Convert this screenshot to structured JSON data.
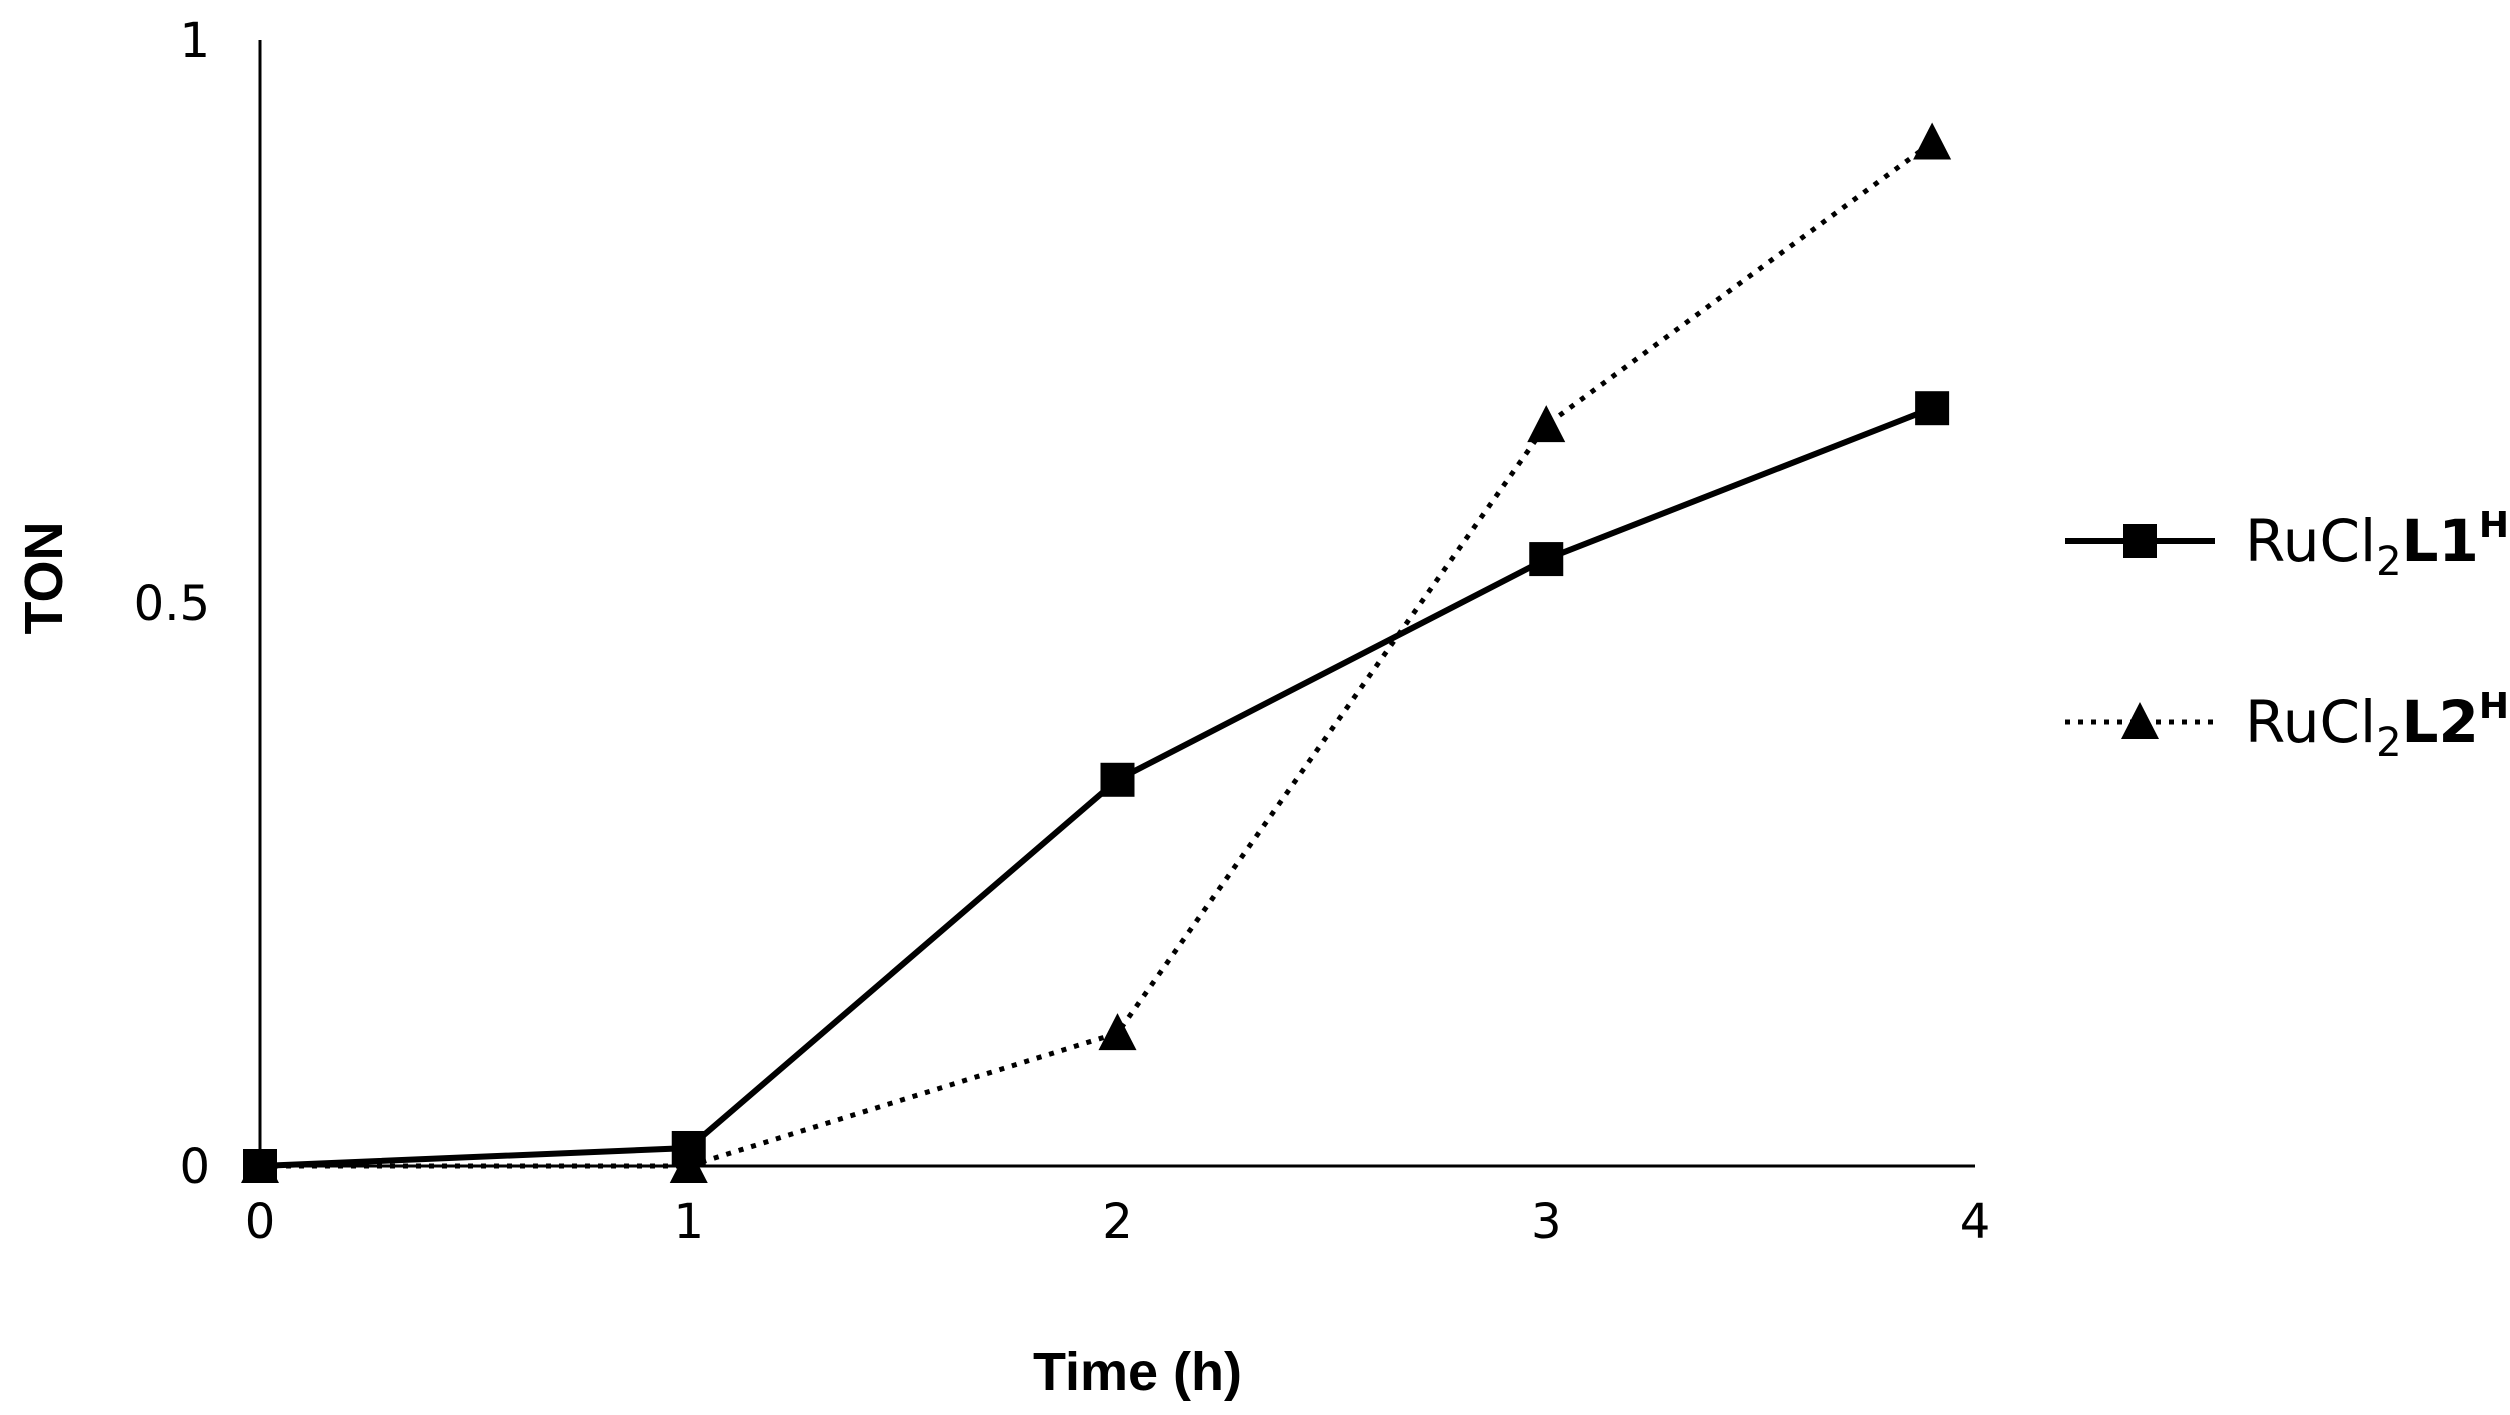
{
  "chart_data": {
    "type": "line",
    "title": "",
    "xlabel": "Time (h)",
    "ylabel": "TON",
    "xlim": [
      0,
      4
    ],
    "ylim": [
      0,
      1
    ],
    "grid": false,
    "x_ticks": [
      "0",
      "1",
      "2",
      "3",
      "4"
    ],
    "y_ticks": [
      "0",
      "0.5",
      "1"
    ],
    "legend_position": "right",
    "series": [
      {
        "name": "RuCl2L1H",
        "legend": {
          "base": "RuCl",
          "sub": "2",
          "bold": "L1",
          "sup": "H"
        },
        "marker": "square",
        "line_style": "solid",
        "color": "#000000",
        "x": [
          0,
          1,
          2,
          3,
          3.9
        ],
        "y": [
          0,
          0.016,
          0.343,
          0.539,
          0.673
        ]
      },
      {
        "name": "RuCl2L2H",
        "legend": {
          "base": "RuCl",
          "sub": "2",
          "bold": "L2",
          "sup": "H"
        },
        "marker": "triangle",
        "line_style": "dotted",
        "color": "#000000",
        "x": [
          0,
          1,
          2,
          3,
          3.9
        ],
        "y": [
          0,
          0,
          0.118,
          0.658,
          0.909
        ]
      }
    ]
  }
}
